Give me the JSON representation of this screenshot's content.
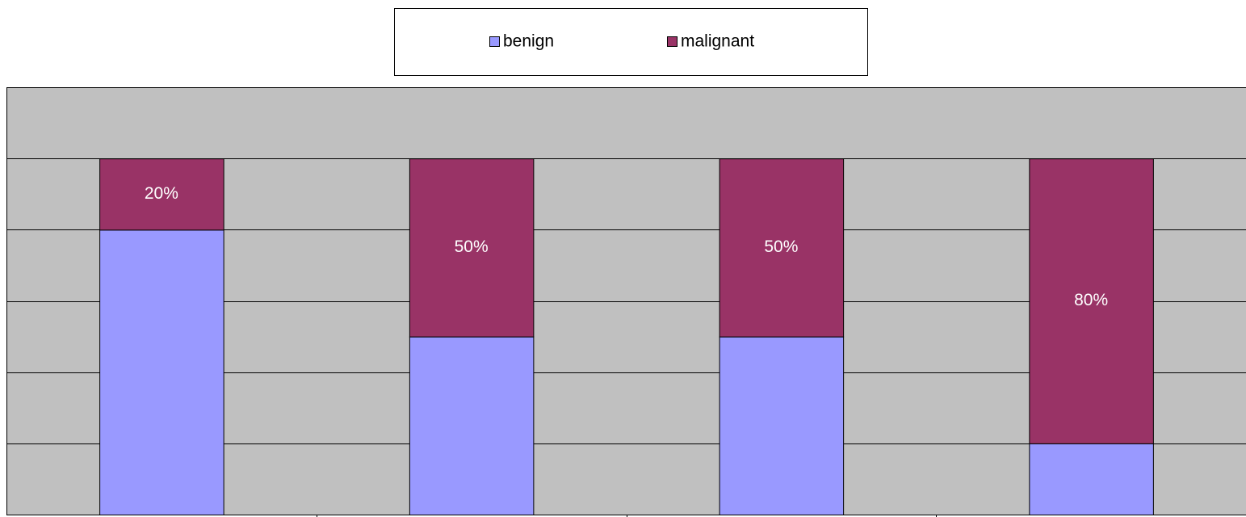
{
  "chart_data": {
    "type": "stacked_bar",
    "categories": [
      null,
      null,
      null,
      null
    ],
    "series": [
      {
        "name": "benign",
        "color": "#9999ff",
        "values": [
          80,
          50,
          50,
          20
        ]
      },
      {
        "name": "malignant",
        "color": "#993366",
        "values": [
          20,
          50,
          50,
          80
        ],
        "value_labels": [
          "20%",
          "50%",
          "50%",
          "80%"
        ]
      }
    ],
    "ylim": [
      0,
      120
    ],
    "yticks": [
      0,
      20,
      40,
      60,
      80,
      100
    ],
    "grid": true,
    "axis_labels": false,
    "legend": "top",
    "plot_background": "#c0c0c0"
  }
}
